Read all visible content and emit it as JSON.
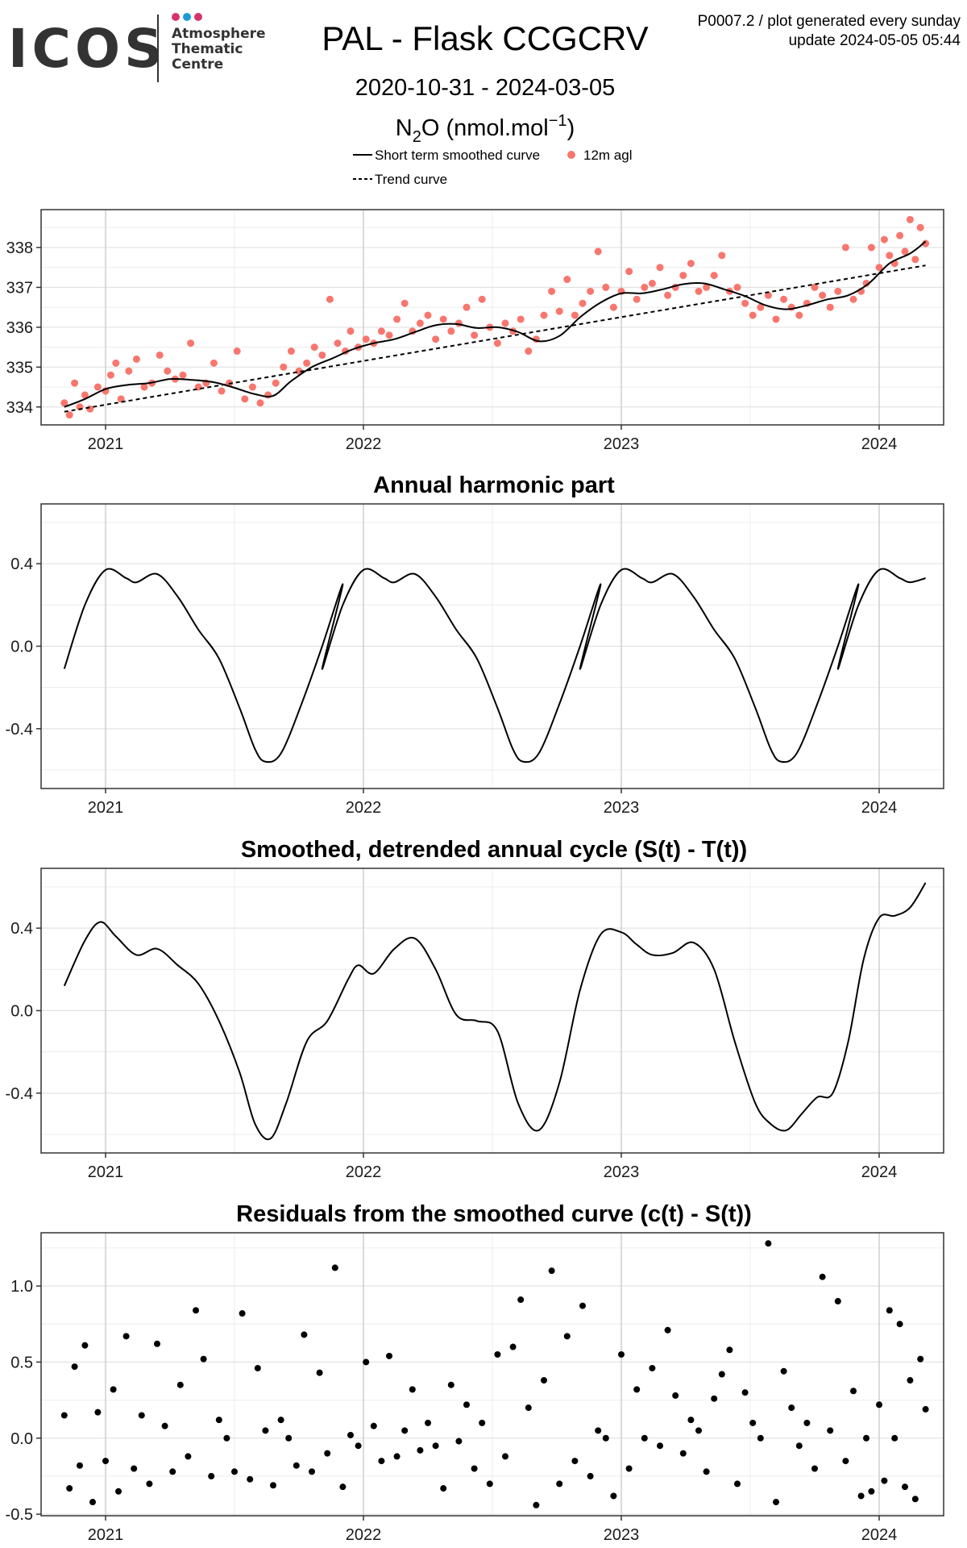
{
  "header": {
    "logo_text": "ICOS",
    "logo_sub": [
      "Atmosphere",
      "Thematic",
      "Centre"
    ],
    "logo_dot_colors": [
      "#d6336c",
      "#1e9bd7",
      "#d6336c"
    ],
    "title": "PAL - Flask CCGCRV",
    "date_range": "2020-10-31 - 2024-03-05",
    "species": "N",
    "species_sub": "2",
    "species_rest": "O (nmol.mol",
    "species_sup": "−1",
    "species_close": ")",
    "info_line1": "P0007.2 / plot generated every sunday",
    "info_line2": "update  2024-05-05 05:44"
  },
  "legend": {
    "smoothed": "Short term smoothed curve",
    "points": "12m agl",
    "trend": "Trend curve"
  },
  "colors": {
    "points": "#f8766d",
    "line": "#000000",
    "grid_major": "#cfcfcf",
    "grid_minor": "#ececec"
  },
  "chart_data": [
    {
      "type": "scatter",
      "title": "",
      "xlabel": "",
      "ylabel": "",
      "xlim": [
        2020.75,
        2024.25
      ],
      "ylim": [
        333.55,
        338.95
      ],
      "xticks": [
        2021,
        2022,
        2023,
        2024
      ],
      "xtick_labels": [
        "2021",
        "2022",
        "2023",
        "2024"
      ],
      "yticks": [
        334,
        335,
        336,
        337,
        338
      ],
      "ytick_labels": [
        "334",
        "335",
        "336",
        "337",
        "338"
      ],
      "grid": true,
      "legend": "top-center",
      "series": [
        {
          "name": "Short term smoothed curve",
          "kind": "line",
          "x": [
            2020.84,
            2020.92,
            2021.0,
            2021.08,
            2021.17,
            2021.25,
            2021.33,
            2021.42,
            2021.5,
            2021.58,
            2021.65,
            2021.72,
            2021.8,
            2021.88,
            2021.96,
            2022.04,
            2022.12,
            2022.2,
            2022.28,
            2022.36,
            2022.44,
            2022.52,
            2022.6,
            2022.68,
            2022.76,
            2022.84,
            2022.92,
            2023.0,
            2023.08,
            2023.16,
            2023.24,
            2023.32,
            2023.4,
            2023.48,
            2023.56,
            2023.64,
            2023.72,
            2023.8,
            2023.88,
            2023.96,
            2024.04,
            2024.12,
            2024.18
          ],
          "y": [
            334.0,
            334.2,
            334.45,
            334.55,
            334.6,
            334.7,
            334.68,
            334.62,
            334.48,
            334.32,
            334.28,
            334.65,
            335.0,
            335.22,
            335.45,
            335.6,
            335.7,
            335.88,
            336.05,
            336.08,
            335.98,
            336.0,
            335.88,
            335.65,
            335.78,
            336.25,
            336.62,
            336.85,
            336.85,
            336.95,
            337.08,
            337.1,
            336.95,
            336.78,
            336.55,
            336.45,
            336.55,
            336.7,
            336.8,
            337.1,
            337.6,
            337.85,
            338.15
          ]
        },
        {
          "name": "Trend curve",
          "kind": "line-dashed",
          "x": [
            2020.84,
            2024.18
          ],
          "y": [
            333.88,
            337.55
          ]
        },
        {
          "name": "12m agl",
          "kind": "points",
          "x": [
            2020.84,
            2020.86,
            2020.88,
            2020.9,
            2020.92,
            2020.94,
            2020.97,
            2021.0,
            2021.02,
            2021.04,
            2021.06,
            2021.09,
            2021.12,
            2021.15,
            2021.18,
            2021.21,
            2021.24,
            2021.27,
            2021.3,
            2021.33,
            2021.36,
            2021.39,
            2021.42,
            2021.45,
            2021.48,
            2021.51,
            2021.54,
            2021.57,
            2021.6,
            2021.63,
            2021.66,
            2021.69,
            2021.72,
            2021.75,
            2021.78,
            2021.81,
            2021.84,
            2021.87,
            2021.9,
            2021.93,
            2021.95,
            2021.98,
            2022.01,
            2022.04,
            2022.07,
            2022.1,
            2022.13,
            2022.16,
            2022.19,
            2022.22,
            2022.25,
            2022.28,
            2022.31,
            2022.34,
            2022.37,
            2022.4,
            2022.43,
            2022.46,
            2022.49,
            2022.52,
            2022.55,
            2022.58,
            2022.61,
            2022.64,
            2022.67,
            2022.7,
            2022.73,
            2022.76,
            2022.79,
            2022.82,
            2022.85,
            2022.88,
            2022.91,
            2022.94,
            2022.97,
            2023.0,
            2023.03,
            2023.06,
            2023.09,
            2023.12,
            2023.15,
            2023.18,
            2023.21,
            2023.24,
            2023.27,
            2023.3,
            2023.33,
            2023.36,
            2023.39,
            2023.42,
            2023.45,
            2023.48,
            2023.51,
            2023.54,
            2023.57,
            2023.6,
            2023.63,
            2023.66,
            2023.69,
            2023.72,
            2023.75,
            2023.78,
            2023.81,
            2023.84,
            2023.87,
            2023.9,
            2023.93,
            2023.95,
            2023.97,
            2024.0,
            2024.02,
            2024.04,
            2024.06,
            2024.08,
            2024.1,
            2024.12,
            2024.14,
            2024.16,
            2024.18
          ],
          "y": [
            334.1,
            333.8,
            334.6,
            334.0,
            334.3,
            333.95,
            334.5,
            334.4,
            334.8,
            335.1,
            334.2,
            334.9,
            335.2,
            334.5,
            334.6,
            335.3,
            334.9,
            334.7,
            334.8,
            335.6,
            334.5,
            334.6,
            335.1,
            334.4,
            334.6,
            335.4,
            334.2,
            334.5,
            334.1,
            334.3,
            334.6,
            335.0,
            335.4,
            334.9,
            335.1,
            335.5,
            335.3,
            336.7,
            335.6,
            335.4,
            335.9,
            335.5,
            335.7,
            335.6,
            335.9,
            335.8,
            336.2,
            336.6,
            335.9,
            336.1,
            336.3,
            335.7,
            336.2,
            335.9,
            336.1,
            336.5,
            335.8,
            336.7,
            336.0,
            335.6,
            336.1,
            335.9,
            336.2,
            335.4,
            335.7,
            336.3,
            336.9,
            336.4,
            337.2,
            336.3,
            336.6,
            336.9,
            337.9,
            337.0,
            336.5,
            336.9,
            337.4,
            336.7,
            337.0,
            337.1,
            337.5,
            336.8,
            337.0,
            337.3,
            337.6,
            336.9,
            337.0,
            337.3,
            337.8,
            336.9,
            337.0,
            336.6,
            336.3,
            336.5,
            336.8,
            336.2,
            336.7,
            336.5,
            336.3,
            336.6,
            337.0,
            336.8,
            336.5,
            336.9,
            338.0,
            336.7,
            336.9,
            337.1,
            338.0,
            337.5,
            338.2,
            337.8,
            337.6,
            338.3,
            337.9,
            338.7,
            337.7,
            338.5,
            338.1
          ]
        }
      ]
    },
    {
      "type": "line",
      "title": "Annual harmonic part",
      "xlabel": "",
      "ylabel": "",
      "xlim": [
        2020.75,
        2024.25
      ],
      "ylim": [
        -0.69,
        0.69
      ],
      "xticks": [
        2021,
        2022,
        2023,
        2024
      ],
      "xtick_labels": [
        "2021",
        "2022",
        "2023",
        "2024"
      ],
      "yticks": [
        -0.4,
        0.0,
        0.4
      ],
      "ytick_labels": [
        "-0.4",
        "0.0",
        "0.4"
      ],
      "grid": true,
      "series": [
        {
          "name": "",
          "kind": "line",
          "periodic": true,
          "x": [
            2020.84,
            2020.92,
            2021.0,
            2021.08,
            2021.12,
            2021.2,
            2021.28,
            2021.36,
            2021.44,
            2021.52,
            2021.58,
            2021.62,
            2021.68,
            2021.76,
            2021.84,
            2021.92,
            2022.0
          ],
          "y": [
            -0.11,
            0.2,
            0.37,
            0.33,
            0.31,
            0.35,
            0.24,
            0.08,
            -0.06,
            -0.3,
            -0.5,
            -0.56,
            -0.52,
            -0.28,
            0.0,
            0.3,
            0.37
          ],
          "x_periodic_until": 2024.18
        }
      ]
    },
    {
      "type": "line",
      "title": "Smoothed, detrended annual cycle (S(t) - T(t))",
      "xlabel": "",
      "ylabel": "",
      "xlim": [
        2020.75,
        2024.25
      ],
      "ylim": [
        -0.69,
        0.69
      ],
      "xticks": [
        2021,
        2022,
        2023,
        2024
      ],
      "xtick_labels": [
        "2021",
        "2022",
        "2023",
        "2024"
      ],
      "yticks": [
        -0.4,
        0.0,
        0.4
      ],
      "ytick_labels": [
        "-0.4",
        "0.0",
        "0.4"
      ],
      "grid": true,
      "series": [
        {
          "name": "",
          "kind": "line",
          "x": [
            2020.84,
            2020.92,
            2020.98,
            2021.04,
            2021.12,
            2021.2,
            2021.28,
            2021.36,
            2021.44,
            2021.52,
            2021.58,
            2021.64,
            2021.7,
            2021.78,
            2021.86,
            2021.94,
            2021.98,
            2022.04,
            2022.12,
            2022.2,
            2022.28,
            2022.36,
            2022.44,
            2022.52,
            2022.6,
            2022.68,
            2022.76,
            2022.84,
            2022.92,
            2023.0,
            2023.06,
            2023.12,
            2023.2,
            2023.28,
            2023.36,
            2023.44,
            2023.52,
            2023.58,
            2023.64,
            2023.7,
            2023.76,
            2023.82,
            2023.88,
            2023.94,
            2024.0,
            2024.06,
            2024.12,
            2024.18
          ],
          "y": [
            0.12,
            0.34,
            0.43,
            0.36,
            0.27,
            0.3,
            0.22,
            0.13,
            -0.05,
            -0.3,
            -0.55,
            -0.62,
            -0.45,
            -0.15,
            -0.05,
            0.15,
            0.22,
            0.18,
            0.3,
            0.35,
            0.2,
            -0.02,
            -0.05,
            -0.1,
            -0.45,
            -0.58,
            -0.35,
            0.1,
            0.37,
            0.38,
            0.32,
            0.27,
            0.28,
            0.33,
            0.2,
            -0.15,
            -0.45,
            -0.55,
            -0.58,
            -0.5,
            -0.42,
            -0.4,
            -0.15,
            0.25,
            0.45,
            0.46,
            0.5,
            0.62
          ]
        }
      ]
    },
    {
      "type": "scatter",
      "title": "Residuals from the smoothed curve (c(t) - S(t))",
      "xlabel": "",
      "ylabel": "",
      "xlim": [
        2020.75,
        2024.25
      ],
      "ylim": [
        -0.51,
        1.35
      ],
      "xticks": [
        2021,
        2022,
        2023,
        2024
      ],
      "xtick_labels": [
        "2021",
        "2022",
        "2023",
        "2024"
      ],
      "yticks": [
        -0.5,
        0.0,
        0.5,
        1.0
      ],
      "ytick_labels": [
        "-0.5",
        "0.0",
        "0.5",
        "1.0"
      ],
      "grid": true,
      "series": [
        {
          "name": "",
          "kind": "points",
          "x": [
            2020.84,
            2020.86,
            2020.88,
            2020.9,
            2020.92,
            2020.95,
            2020.97,
            2021.0,
            2021.03,
            2021.05,
            2021.08,
            2021.11,
            2021.14,
            2021.17,
            2021.2,
            2021.23,
            2021.26,
            2021.29,
            2021.32,
            2021.35,
            2021.38,
            2021.41,
            2021.44,
            2021.47,
            2021.5,
            2021.53,
            2021.56,
            2021.59,
            2021.62,
            2021.65,
            2021.68,
            2021.71,
            2021.74,
            2021.77,
            2021.8,
            2021.83,
            2021.86,
            2021.89,
            2021.92,
            2021.95,
            2021.98,
            2022.01,
            2022.04,
            2022.07,
            2022.1,
            2022.13,
            2022.16,
            2022.19,
            2022.22,
            2022.25,
            2022.28,
            2022.31,
            2022.34,
            2022.37,
            2022.4,
            2022.43,
            2022.46,
            2022.49,
            2022.52,
            2022.55,
            2022.58,
            2022.61,
            2022.64,
            2022.67,
            2022.7,
            2022.73,
            2022.76,
            2022.79,
            2022.82,
            2022.85,
            2022.88,
            2022.91,
            2022.94,
            2022.97,
            2023.0,
            2023.03,
            2023.06,
            2023.09,
            2023.12,
            2023.15,
            2023.18,
            2023.21,
            2023.24,
            2023.27,
            2023.3,
            2023.33,
            2023.36,
            2023.39,
            2023.42,
            2023.45,
            2023.48,
            2023.51,
            2023.54,
            2023.57,
            2023.6,
            2023.63,
            2023.66,
            2023.69,
            2023.72,
            2023.75,
            2023.78,
            2023.81,
            2023.84,
            2023.87,
            2023.9,
            2023.93,
            2023.95,
            2023.97,
            2024.0,
            2024.02,
            2024.04,
            2024.06,
            2024.08,
            2024.1,
            2024.12,
            2024.14,
            2024.16,
            2024.18
          ],
          "y": [
            0.15,
            -0.33,
            0.47,
            -0.18,
            0.61,
            -0.42,
            0.17,
            -0.15,
            0.32,
            -0.35,
            0.67,
            -0.2,
            0.15,
            -0.3,
            0.62,
            0.08,
            -0.22,
            0.35,
            -0.12,
            0.84,
            0.52,
            -0.25,
            0.12,
            0.0,
            -0.22,
            0.82,
            -0.27,
            0.46,
            0.05,
            -0.31,
            0.12,
            0.0,
            -0.18,
            0.68,
            -0.22,
            0.43,
            -0.1,
            1.12,
            -0.32,
            0.02,
            -0.05,
            0.5,
            0.08,
            -0.15,
            0.54,
            -0.12,
            0.05,
            0.32,
            -0.08,
            0.1,
            -0.05,
            -0.33,
            0.35,
            -0.02,
            0.22,
            -0.2,
            0.1,
            -0.3,
            0.55,
            -0.12,
            0.6,
            0.91,
            0.2,
            -0.44,
            0.38,
            1.1,
            -0.3,
            0.67,
            -0.15,
            0.87,
            -0.25,
            0.05,
            0.0,
            -0.38,
            0.55,
            -0.2,
            0.32,
            0.0,
            0.46,
            -0.05,
            0.71,
            0.28,
            -0.1,
            0.12,
            0.05,
            -0.22,
            0.26,
            0.42,
            0.58,
            -0.3,
            0.3,
            0.1,
            0.0,
            1.28,
            -0.42,
            0.44,
            0.2,
            -0.05,
            0.1,
            -0.2,
            1.06,
            0.05,
            0.9,
            -0.15,
            0.31,
            -0.38,
            0.0,
            -0.35,
            0.22,
            -0.28,
            0.84,
            0.0,
            0.75,
            -0.32,
            0.38,
            -0.4,
            0.52,
            0.19
          ]
        }
      ]
    }
  ]
}
